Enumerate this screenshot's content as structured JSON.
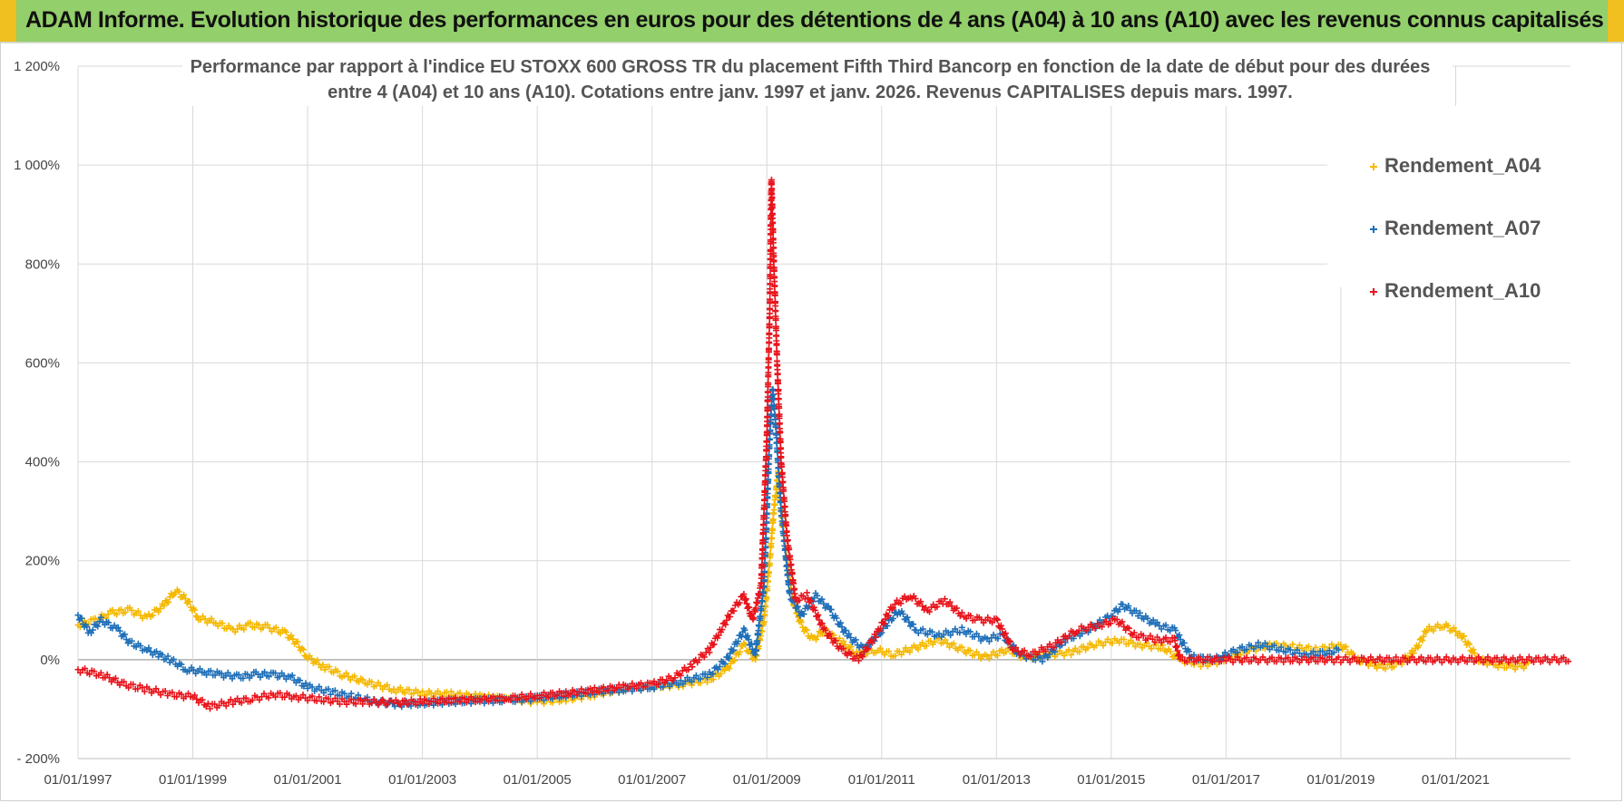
{
  "header": {
    "title": "ADAM Informe. Evolution historique des performances en euros pour des détentions de 4 ans (A04) à 10 ans (A10) avec les revenus connus capitalisés"
  },
  "colors": {
    "header_bg": "#93cf6a",
    "header_accent": "#f0c020",
    "A04": "#f5b800",
    "A07": "#1f6fb8",
    "A10": "#e8141c",
    "grid": "#d9d9d9"
  },
  "chart_data": {
    "type": "scatter",
    "title_lines": [
      "Performance par rapport à l'indice EU STOXX 600 GROSS TR  du placement Fifth Third Bancorp en fonction de la date de début pour des durées",
      "entre 4 (A04) et 10 ans (A10). Cotations entre janv. 1997 et janv. 2026. Revenus CAPITALISES depuis mars. 1997."
    ],
    "xlabel": "",
    "ylabel": "",
    "xlim": [
      1997.0,
      2023.0
    ],
    "ylim": [
      -200,
      1200
    ],
    "y_ticks": [
      -200,
      0,
      200,
      400,
      600,
      800,
      1000,
      1200
    ],
    "y_tick_labels": [
      "- 200%",
      "0%",
      "200%",
      "400%",
      "600%",
      "800%",
      "1 000%",
      "1 200%"
    ],
    "x_ticks": [
      1997,
      1999,
      2001,
      2003,
      2005,
      2007,
      2009,
      2011,
      2013,
      2015,
      2017,
      2019,
      2021
    ],
    "x_tick_labels": [
      "01/01/1997",
      "01/01/1999",
      "01/01/2001",
      "01/01/2003",
      "01/01/2005",
      "01/01/2007",
      "01/01/2009",
      "01/01/2011",
      "01/01/2013",
      "01/01/2015",
      "01/01/2017",
      "01/01/2019",
      "01/01/2021"
    ],
    "legend_position": "top-right",
    "series": [
      {
        "name": "Rendement_A04",
        "marker": "+",
        "points": [
          [
            1997.0,
            70
          ],
          [
            1997.3,
            80
          ],
          [
            1997.6,
            95
          ],
          [
            1997.9,
            100
          ],
          [
            1998.2,
            85
          ],
          [
            1998.5,
            110
          ],
          [
            1998.7,
            140
          ],
          [
            1998.9,
            120
          ],
          [
            1999.1,
            85
          ],
          [
            1999.4,
            75
          ],
          [
            1999.7,
            60
          ],
          [
            2000.0,
            70
          ],
          [
            2000.3,
            65
          ],
          [
            2000.6,
            55
          ],
          [
            2000.8,
            35
          ],
          [
            2001.0,
            5
          ],
          [
            2001.3,
            -15
          ],
          [
            2001.6,
            -30
          ],
          [
            2002.0,
            -45
          ],
          [
            2002.5,
            -60
          ],
          [
            2003.0,
            -68
          ],
          [
            2003.5,
            -70
          ],
          [
            2004.0,
            -75
          ],
          [
            2004.5,
            -80
          ],
          [
            2005.0,
            -85
          ],
          [
            2005.5,
            -80
          ],
          [
            2006.0,
            -70
          ],
          [
            2006.5,
            -60
          ],
          [
            2007.0,
            -55
          ],
          [
            2007.5,
            -50
          ],
          [
            2008.0,
            -40
          ],
          [
            2008.3,
            -20
          ],
          [
            2008.6,
            30
          ],
          [
            2008.8,
            0
          ],
          [
            2008.95,
            80
          ],
          [
            2009.05,
            200
          ],
          [
            2009.12,
            300
          ],
          [
            2009.2,
            380
          ],
          [
            2009.3,
            250
          ],
          [
            2009.45,
            120
          ],
          [
            2009.6,
            70
          ],
          [
            2009.8,
            40
          ],
          [
            2010.0,
            60
          ],
          [
            2010.3,
            35
          ],
          [
            2010.6,
            10
          ],
          [
            2010.9,
            20
          ],
          [
            2011.2,
            10
          ],
          [
            2011.6,
            25
          ],
          [
            2012.0,
            40
          ],
          [
            2012.4,
            20
          ],
          [
            2012.8,
            5
          ],
          [
            2013.2,
            20
          ],
          [
            2013.5,
            5
          ],
          [
            2013.9,
            10
          ],
          [
            2014.3,
            15
          ],
          [
            2014.7,
            30
          ],
          [
            2015.1,
            40
          ],
          [
            2015.5,
            30
          ],
          [
            2015.9,
            25
          ],
          [
            2016.2,
            0
          ],
          [
            2016.6,
            -10
          ],
          [
            2017.0,
            0
          ],
          [
            2017.4,
            20
          ],
          [
            2017.8,
            30
          ],
          [
            2018.2,
            25
          ],
          [
            2018.6,
            20
          ],
          [
            2019.0,
            30
          ],
          [
            2019.3,
            0
          ],
          [
            2019.7,
            -15
          ],
          [
            2020.0,
            -10
          ],
          [
            2020.3,
            20
          ],
          [
            2020.5,
            60
          ],
          [
            2020.8,
            70
          ],
          [
            2021.1,
            50
          ],
          [
            2021.4,
            0
          ],
          [
            2021.7,
            -10
          ],
          [
            2022.0,
            -15
          ],
          [
            2022.3,
            -10
          ]
        ]
      },
      {
        "name": "Rendement_A07",
        "marker": "+",
        "points": [
          [
            1997.0,
            90
          ],
          [
            1997.2,
            55
          ],
          [
            1997.4,
            80
          ],
          [
            1997.7,
            60
          ],
          [
            1997.9,
            35
          ],
          [
            1998.2,
            20
          ],
          [
            1998.4,
            10
          ],
          [
            1998.6,
            0
          ],
          [
            1998.9,
            -20
          ],
          [
            1999.2,
            -25
          ],
          [
            1999.5,
            -30
          ],
          [
            1999.8,
            -35
          ],
          [
            2000.1,
            -30
          ],
          [
            2000.4,
            -30
          ],
          [
            2000.7,
            -35
          ],
          [
            2001.0,
            -55
          ],
          [
            2001.4,
            -65
          ],
          [
            2001.8,
            -75
          ],
          [
            2002.2,
            -85
          ],
          [
            2002.6,
            -90
          ],
          [
            2003.0,
            -88
          ],
          [
            2003.5,
            -85
          ],
          [
            2004.0,
            -83
          ],
          [
            2004.5,
            -82
          ],
          [
            2005.0,
            -78
          ],
          [
            2005.5,
            -72
          ],
          [
            2006.0,
            -65
          ],
          [
            2006.5,
            -60
          ],
          [
            2007.0,
            -55
          ],
          [
            2007.5,
            -45
          ],
          [
            2008.0,
            -30
          ],
          [
            2008.3,
            0
          ],
          [
            2008.6,
            60
          ],
          [
            2008.8,
            10
          ],
          [
            2008.95,
            150
          ],
          [
            2009.05,
            450
          ],
          [
            2009.1,
            550
          ],
          [
            2009.15,
            480
          ],
          [
            2009.25,
            300
          ],
          [
            2009.4,
            130
          ],
          [
            2009.6,
            90
          ],
          [
            2009.85,
            130
          ],
          [
            2010.1,
            100
          ],
          [
            2010.4,
            50
          ],
          [
            2010.7,
            20
          ],
          [
            2011.0,
            60
          ],
          [
            2011.3,
            100
          ],
          [
            2011.6,
            60
          ],
          [
            2012.0,
            50
          ],
          [
            2012.4,
            60
          ],
          [
            2012.8,
            40
          ],
          [
            2013.1,
            50
          ],
          [
            2013.4,
            10
          ],
          [
            2013.8,
            0
          ],
          [
            2014.2,
            40
          ],
          [
            2014.6,
            60
          ],
          [
            2015.0,
            90
          ],
          [
            2015.2,
            110
          ],
          [
            2015.5,
            90
          ],
          [
            2015.8,
            70
          ],
          [
            2016.1,
            60
          ],
          [
            2016.4,
            5
          ],
          [
            2016.8,
            0
          ],
          [
            2017.2,
            20
          ],
          [
            2017.6,
            30
          ],
          [
            2018.0,
            20
          ],
          [
            2018.4,
            10
          ],
          [
            2018.8,
            15
          ],
          [
            2019.0,
            20
          ]
        ]
      },
      {
        "name": "Rendement_A10",
        "marker": "+",
        "points": [
          [
            1997.0,
            -20
          ],
          [
            1997.4,
            -30
          ],
          [
            1997.8,
            -50
          ],
          [
            1998.2,
            -60
          ],
          [
            1998.6,
            -70
          ],
          [
            1999.0,
            -75
          ],
          [
            1999.3,
            -95
          ],
          [
            1999.7,
            -85
          ],
          [
            2000.0,
            -80
          ],
          [
            2000.4,
            -70
          ],
          [
            2000.8,
            -75
          ],
          [
            2001.2,
            -80
          ],
          [
            2001.6,
            -85
          ],
          [
            2002.0,
            -85
          ],
          [
            2002.5,
            -87
          ],
          [
            2003.0,
            -85
          ],
          [
            2003.5,
            -82
          ],
          [
            2004.0,
            -80
          ],
          [
            2004.5,
            -78
          ],
          [
            2005.0,
            -73
          ],
          [
            2005.5,
            -68
          ],
          [
            2006.0,
            -62
          ],
          [
            2006.5,
            -55
          ],
          [
            2007.0,
            -50
          ],
          [
            2007.4,
            -35
          ],
          [
            2007.7,
            -10
          ],
          [
            2008.0,
            20
          ],
          [
            2008.2,
            60
          ],
          [
            2008.4,
            100
          ],
          [
            2008.6,
            130
          ],
          [
            2008.75,
            80
          ],
          [
            2008.9,
            150
          ],
          [
            2009.0,
            450
          ],
          [
            2009.05,
            700
          ],
          [
            2009.08,
            970
          ],
          [
            2009.12,
            810
          ],
          [
            2009.18,
            600
          ],
          [
            2009.25,
            400
          ],
          [
            2009.35,
            250
          ],
          [
            2009.5,
            120
          ],
          [
            2009.7,
            130
          ],
          [
            2010.0,
            60
          ],
          [
            2010.3,
            20
          ],
          [
            2010.6,
            0
          ],
          [
            2010.9,
            50
          ],
          [
            2011.2,
            110
          ],
          [
            2011.5,
            130
          ],
          [
            2011.8,
            100
          ],
          [
            2012.1,
            120
          ],
          [
            2012.4,
            90
          ],
          [
            2012.7,
            80
          ],
          [
            2013.0,
            80
          ],
          [
            2013.3,
            20
          ],
          [
            2013.6,
            10
          ],
          [
            2014.0,
            30
          ],
          [
            2014.4,
            60
          ],
          [
            2014.8,
            70
          ],
          [
            2015.1,
            80
          ],
          [
            2015.4,
            50
          ],
          [
            2015.8,
            40
          ],
          [
            2016.1,
            40
          ],
          [
            2016.2,
            0
          ],
          [
            2017.0,
            0
          ],
          [
            2018.0,
            0
          ],
          [
            2019.0,
            0
          ],
          [
            2020.0,
            0
          ],
          [
            2021.0,
            0
          ],
          [
            2022.0,
            0
          ],
          [
            2023.0,
            0
          ]
        ]
      }
    ]
  }
}
